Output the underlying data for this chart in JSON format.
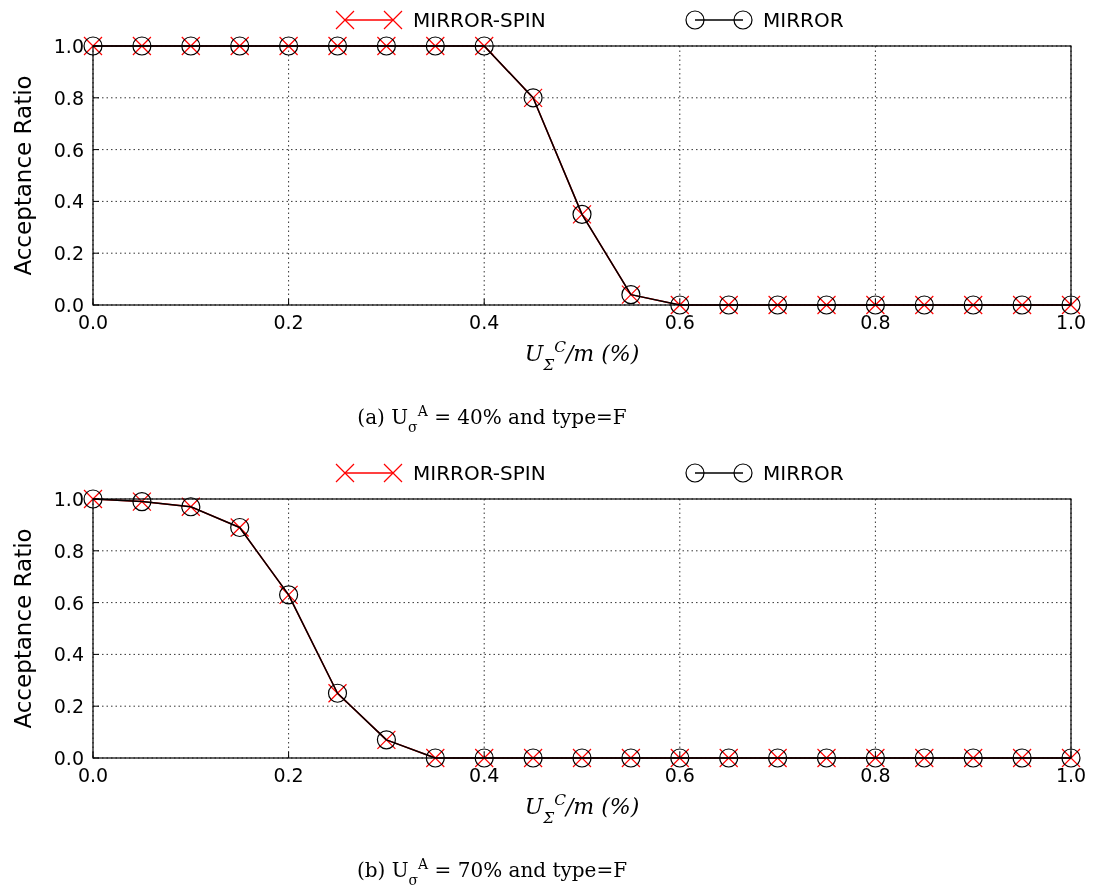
{
  "chart_data": [
    {
      "type": "line",
      "annotations": [
        "(a) U$_{σ}$$^{A}$ = 40% and type=F"
      ],
      "xlabel": "U$_{Σ}$$^{C}$/m (%)",
      "ylabel": "Acceptance Ratio",
      "x": [
        0,
        0.05,
        0.1,
        0.15,
        0.2,
        0.25,
        0.3,
        0.35,
        0.4,
        0.45,
        0.5,
        0.55,
        0.6,
        0.65,
        0.7,
        0.75,
        0.8,
        0.85,
        0.9,
        0.95,
        1.0
      ],
      "series": [
        {
          "name": "MIRROR-SPIN",
          "color": "#ff0000",
          "marker": "cross",
          "values": [
            1,
            1,
            1,
            1,
            1,
            1,
            1,
            1,
            1,
            0.8,
            0.35,
            0.04,
            0,
            0,
            0,
            0,
            0,
            0,
            0,
            0,
            0
          ]
        },
        {
          "name": "MIRROR",
          "color": "#000000",
          "marker": "circle",
          "values": [
            1,
            1,
            1,
            1,
            1,
            1,
            1,
            1,
            1,
            0.8,
            0.35,
            0.04,
            0,
            0,
            0,
            0,
            0,
            0,
            0,
            0,
            0
          ]
        }
      ],
      "xlim": [
        0,
        1
      ],
      "ylim": [
        0,
        1
      ],
      "xticks": [
        {
          "value": 0,
          "label": "0.0"
        },
        {
          "value": 0.2,
          "label": "0.2"
        },
        {
          "value": 0.4,
          "label": "0.4"
        },
        {
          "value": 0.6,
          "label": "0.6"
        },
        {
          "value": 0.8,
          "label": "0.8"
        },
        {
          "value": 1,
          "label": "1.0"
        }
      ],
      "yticks": [
        {
          "value": 0,
          "label": "0.0"
        },
        {
          "value": 0.2,
          "label": "0.2"
        },
        {
          "value": 0.4,
          "label": "0.4"
        },
        {
          "value": 0.6,
          "label": "0.6"
        },
        {
          "value": 0.8,
          "label": "0.8"
        },
        {
          "value": 1,
          "label": "1.0"
        }
      ],
      "grid": true,
      "legend": "top",
      "line_style": "solid"
    },
    {
      "type": "line",
      "annotations": [
        "(b) U$_{σ}$$^{A}$ = 70% and type=F"
      ],
      "xlabel": "U$_{Σ}$$^{C}$/m (%)",
      "ylabel": "Acceptance Ratio",
      "x": [
        0,
        0.05,
        0.1,
        0.15,
        0.2,
        0.25,
        0.3,
        0.35,
        0.4,
        0.45,
        0.5,
        0.55,
        0.6,
        0.65,
        0.7,
        0.75,
        0.8,
        0.85,
        0.9,
        0.95,
        1.0
      ],
      "series": [
        {
          "name": "MIRROR-SPIN",
          "color": "#ff0000",
          "marker": "cross",
          "values": [
            1,
            0.99,
            0.97,
            0.89,
            0.63,
            0.25,
            0.07,
            0,
            0,
            0,
            0,
            0,
            0,
            0,
            0,
            0,
            0,
            0,
            0,
            0,
            0
          ]
        },
        {
          "name": "MIRROR",
          "color": "#000000",
          "marker": "circle",
          "values": [
            1,
            0.99,
            0.97,
            0.89,
            0.63,
            0.25,
            0.07,
            0,
            0,
            0,
            0,
            0,
            0,
            0,
            0,
            0,
            0,
            0,
            0,
            0,
            0
          ]
        }
      ],
      "xlim": [
        0,
        1
      ],
      "ylim": [
        0,
        1
      ],
      "xticks": [
        {
          "value": 0,
          "label": "0.0"
        },
        {
          "value": 0.2,
          "label": "0.2"
        },
        {
          "value": 0.4,
          "label": "0.4"
        },
        {
          "value": 0.6,
          "label": "0.6"
        },
        {
          "value": 0.8,
          "label": "0.8"
        },
        {
          "value": 1,
          "label": "1.0"
        }
      ],
      "yticks": [
        {
          "value": 0,
          "label": "0.0"
        },
        {
          "value": 0.2,
          "label": "0.2"
        },
        {
          "value": 0.4,
          "label": "0.4"
        },
        {
          "value": 0.6,
          "label": "0.6"
        },
        {
          "value": 0.8,
          "label": "0.8"
        },
        {
          "value": 1,
          "label": "1.0"
        }
      ],
      "grid": true,
      "legend": "top",
      "line_style": "solid"
    }
  ]
}
